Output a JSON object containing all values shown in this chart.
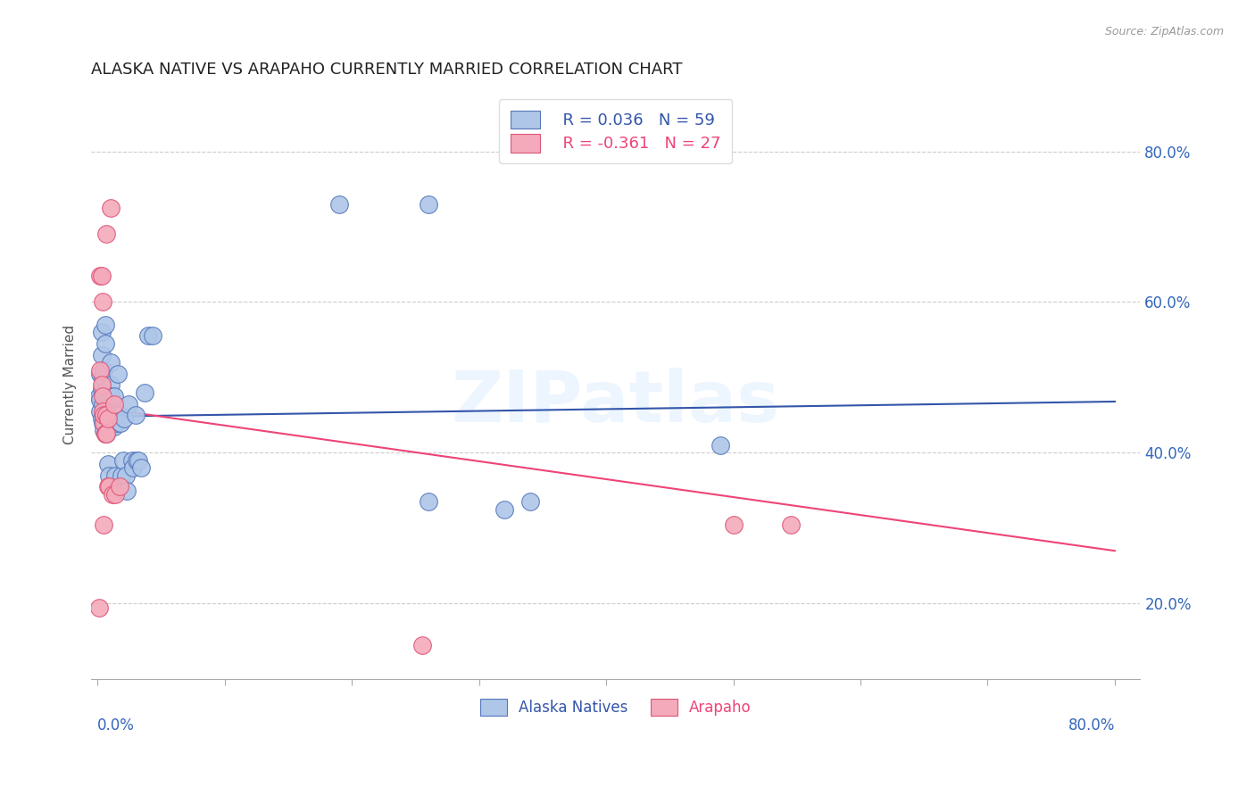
{
  "title": "ALASKA NATIVE VS ARAPAHO CURRENTLY MARRIED CORRELATION CHART",
  "source": "Source: ZipAtlas.com",
  "ylabel": "Currently Married",
  "yticks": [
    0.2,
    0.4,
    0.6,
    0.8
  ],
  "ytick_labels": [
    "20.0%",
    "40.0%",
    "60.0%",
    "80.0%"
  ],
  "xlim": [
    -0.005,
    0.82
  ],
  "ylim": [
    0.1,
    0.88
  ],
  "watermark": "ZIPatlas",
  "legend_blue_r": "R = 0.036",
  "legend_blue_n": "N = 59",
  "legend_pink_r": "R = -0.361",
  "legend_pink_n": "N = 27",
  "blue_color": "#AEC6E8",
  "pink_color": "#F4AABB",
  "blue_edge_color": "#5577BB",
  "pink_edge_color": "#DD5577",
  "blue_line_color": "#3355AA",
  "pink_line_color": "#EE4477",
  "blue_scatter": [
    [
      0.001,
      0.475
    ],
    [
      0.002,
      0.505
    ],
    [
      0.002,
      0.455
    ],
    [
      0.002,
      0.47
    ],
    [
      0.003,
      0.485
    ],
    [
      0.003,
      0.445
    ],
    [
      0.003,
      0.53
    ],
    [
      0.003,
      0.56
    ],
    [
      0.004,
      0.5
    ],
    [
      0.004,
      0.465
    ],
    [
      0.004,
      0.44
    ],
    [
      0.005,
      0.45
    ],
    [
      0.005,
      0.48
    ],
    [
      0.005,
      0.51
    ],
    [
      0.005,
      0.43
    ],
    [
      0.006,
      0.57
    ],
    [
      0.006,
      0.545
    ],
    [
      0.007,
      0.465
    ],
    [
      0.007,
      0.425
    ],
    [
      0.008,
      0.475
    ],
    [
      0.008,
      0.445
    ],
    [
      0.008,
      0.385
    ],
    [
      0.009,
      0.46
    ],
    [
      0.009,
      0.37
    ],
    [
      0.01,
      0.49
    ],
    [
      0.01,
      0.52
    ],
    [
      0.01,
      0.475
    ],
    [
      0.011,
      0.45
    ],
    [
      0.011,
      0.435
    ],
    [
      0.012,
      0.465
    ],
    [
      0.013,
      0.435
    ],
    [
      0.013,
      0.475
    ],
    [
      0.014,
      0.37
    ],
    [
      0.014,
      0.45
    ],
    [
      0.015,
      0.44
    ],
    [
      0.016,
      0.505
    ],
    [
      0.017,
      0.45
    ],
    [
      0.018,
      0.44
    ],
    [
      0.019,
      0.37
    ],
    [
      0.02,
      0.39
    ],
    [
      0.021,
      0.445
    ],
    [
      0.022,
      0.37
    ],
    [
      0.023,
      0.35
    ],
    [
      0.024,
      0.465
    ],
    [
      0.027,
      0.39
    ],
    [
      0.028,
      0.38
    ],
    [
      0.03,
      0.45
    ],
    [
      0.031,
      0.39
    ],
    [
      0.032,
      0.39
    ],
    [
      0.034,
      0.38
    ],
    [
      0.037,
      0.48
    ],
    [
      0.04,
      0.555
    ],
    [
      0.043,
      0.555
    ],
    [
      0.19,
      0.73
    ],
    [
      0.26,
      0.73
    ],
    [
      0.26,
      0.335
    ],
    [
      0.32,
      0.325
    ],
    [
      0.34,
      0.335
    ],
    [
      0.49,
      0.41
    ]
  ],
  "pink_scatter": [
    [
      0.001,
      0.195
    ],
    [
      0.002,
      0.51
    ],
    [
      0.002,
      0.635
    ],
    [
      0.003,
      0.49
    ],
    [
      0.003,
      0.635
    ],
    [
      0.004,
      0.475
    ],
    [
      0.004,
      0.455
    ],
    [
      0.004,
      0.6
    ],
    [
      0.005,
      0.44
    ],
    [
      0.005,
      0.45
    ],
    [
      0.005,
      0.305
    ],
    [
      0.006,
      0.425
    ],
    [
      0.006,
      0.425
    ],
    [
      0.007,
      0.425
    ],
    [
      0.007,
      0.69
    ],
    [
      0.007,
      0.45
    ],
    [
      0.008,
      0.445
    ],
    [
      0.008,
      0.355
    ],
    [
      0.009,
      0.355
    ],
    [
      0.01,
      0.725
    ],
    [
      0.012,
      0.345
    ],
    [
      0.013,
      0.465
    ],
    [
      0.014,
      0.345
    ],
    [
      0.017,
      0.355
    ],
    [
      0.255,
      0.145
    ],
    [
      0.5,
      0.305
    ],
    [
      0.545,
      0.305
    ]
  ],
  "blue_trend_x": [
    0.0,
    0.8
  ],
  "blue_trend_y": [
    0.448,
    0.468
  ],
  "pink_trend_x": [
    0.0,
    0.8
  ],
  "pink_trend_y": [
    0.46,
    0.27
  ],
  "background_color": "#FFFFFF",
  "grid_color": "#CCCCCC"
}
